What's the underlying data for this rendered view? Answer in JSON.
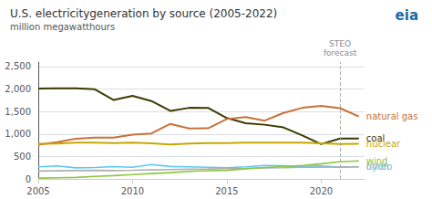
{
  "chart_data": {
    "type": "line",
    "title": "U.S. electricitygeneration by source (2005-2022)",
    "subtitle": "million megawatthours",
    "x": [
      2005,
      2006,
      2007,
      2008,
      2009,
      2010,
      2011,
      2012,
      2013,
      2014,
      2015,
      2016,
      2017,
      2018,
      2019,
      2020,
      2021,
      2022
    ],
    "series": [
      {
        "name": "coal",
        "color": "#3a3a00",
        "values": [
          2013,
          2016,
          2016,
          1994,
          1755,
          1847,
          1733,
          1514,
          1582,
          1581,
          1355,
          1240,
          1206,
          1146,
          966,
          774,
          898,
          900
        ]
      },
      {
        "name": "natural gas",
        "color": "#c87137",
        "values": [
          760,
          816,
          896,
          920,
          920,
          987,
          1013,
          1225,
          1124,
          1126,
          1333,
          1378,
          1296,
          1468,
          1582,
          1624,
          1575,
          1390
        ]
      },
      {
        "name": "nuclear",
        "color": "#c8a800",
        "values": [
          782,
          787,
          806,
          806,
          799,
          807,
          790,
          769,
          789,
          797,
          797,
          805,
          805,
          807,
          809,
          790,
          778,
          780
        ]
      },
      {
        "name": "hydro",
        "color": "#5bc8f5",
        "values": [
          270,
          289,
          247,
          254,
          273,
          260,
          319,
          276,
          268,
          259,
          249,
          268,
          300,
          292,
          274,
          291,
          262,
          270
        ]
      },
      {
        "name": "other",
        "color": "#b0b0b0",
        "values": [
          175,
          180,
          185,
          190,
          185,
          192,
          200,
          208,
          215,
          220,
          228,
          235,
          245,
          250,
          258,
          260,
          265,
          268
        ]
      },
      {
        "name": "wind",
        "color": "#8dc63f",
        "values": [
          17,
          26,
          34,
          55,
          74,
          95,
          120,
          140,
          168,
          182,
          191,
          226,
          254,
          275,
          301,
          338,
          380,
          400
        ]
      }
    ],
    "xlim": [
      2005,
      2022.3
    ],
    "xticks": [
      2005,
      2010,
      2015,
      2020
    ],
    "ylim": [
      0,
      2600
    ],
    "yticks": [
      0,
      500,
      {
        "value": 1000,
        "label": "1,000"
      },
      {
        "value": 1500,
        "label": "1,500"
      },
      {
        "value": 2000,
        "label": "2,000"
      },
      {
        "value": 2500,
        "label": "2,500"
      }
    ],
    "grid": true,
    "annotations": [
      {
        "x": 2021,
        "text": [
          "STEO",
          "forecast"
        ],
        "line_style": "dashed"
      },
      {
        "text": "eia",
        "color": "#1a6aaa"
      }
    ]
  }
}
